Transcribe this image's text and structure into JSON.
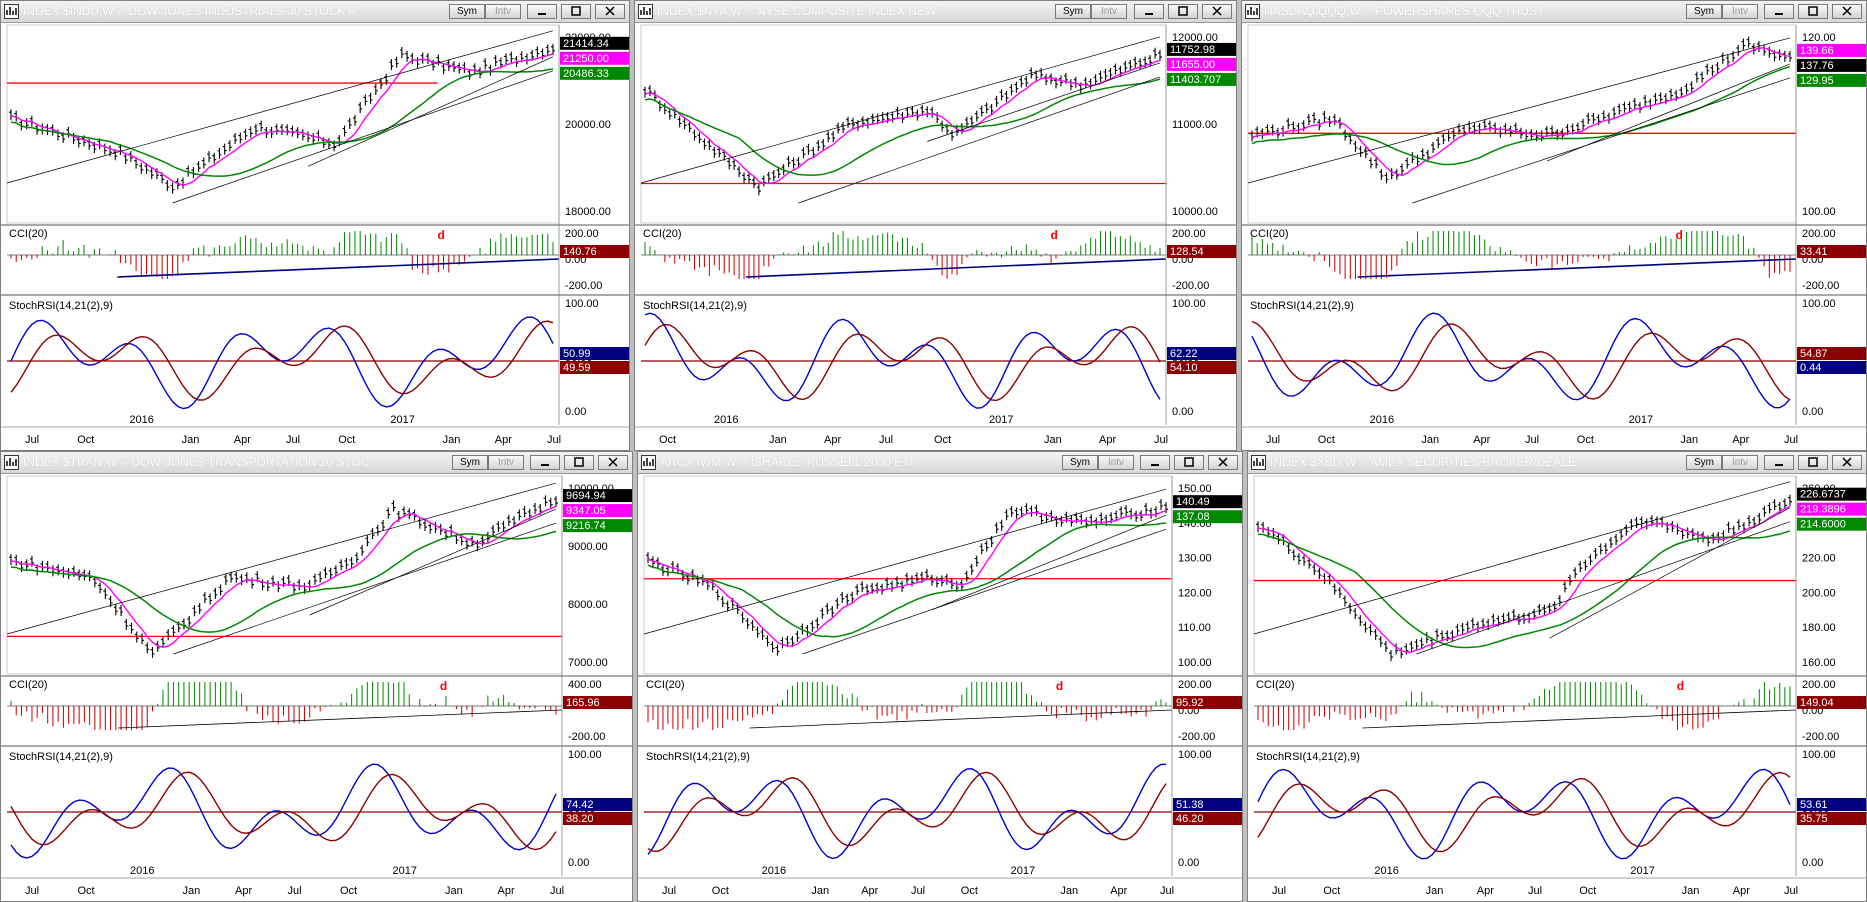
{
  "buttons": {
    "sym": "Sym",
    "intv": "Intv"
  },
  "colors": {
    "price": "#000000",
    "ma_fast": "#ff00ff",
    "ma_slow": "#008800",
    "hline": "#ff0000",
    "cci_pos": "#008800",
    "cci_neg": "#cc0000",
    "cci_trend": "#000080",
    "stoch_k": "#0000cc",
    "stoch_d": "#8b0000",
    "divergence": "#ff0000",
    "grid": "#888888"
  },
  "panels": [
    {
      "title": "INDEX:$INDU,W -- DOW-JONES INDUSTRIALS 30 STOCK A",
      "price_ticks": [
        "22000.00",
        "20000.00",
        "18000.00"
      ],
      "price_badges": [
        {
          "text": "21414.34",
          "color": "#000000"
        },
        {
          "text": "21250.00",
          "color": "#ff00ff"
        },
        {
          "text": "20486.33",
          "color": "#008800"
        }
      ],
      "cci_label": "CCI(20)",
      "cci_ticks": [
        "200.00",
        "0.00",
        "-200.00"
      ],
      "cci_badge": "140.76",
      "cci_mark": "d",
      "stoch_label": "StochRSI(14,21(2),9)",
      "stoch_ticks": [
        "100.00",
        "50.00",
        "0.00"
      ],
      "stoch_badges": [
        {
          "text": "50.99",
          "color": "#000080"
        },
        {
          "text": "49.59",
          "color": "#8b0000"
        }
      ],
      "x_labels": [
        "Jul",
        "Oct",
        "2016",
        "Jan",
        "Apr",
        "Jul",
        "Oct",
        "2017",
        "Jan",
        "Apr",
        "Jul"
      ]
    },
    {
      "title": "INDEX:$NYA,W -- NYSE COMPOSITE INDEX NEW",
      "price_ticks": [
        "12000.00",
        "11000.00",
        "10000.00"
      ],
      "price_badges": [
        {
          "text": "11752.98",
          "color": "#000000"
        },
        {
          "text": "11655.00",
          "color": "#ff00ff"
        },
        {
          "text": "11403.707",
          "color": "#008800"
        }
      ],
      "cci_label": "CCI(20)",
      "cci_ticks": [
        "200.00",
        "0.00",
        "-200.00"
      ],
      "cci_badge": "128.54",
      "cci_mark": "d",
      "stoch_label": "StochRSI(14,21(2),9)",
      "stoch_ticks": [
        "100.00",
        "50.00",
        "0.00"
      ],
      "stoch_badges": [
        {
          "text": "62.22",
          "color": "#000080"
        },
        {
          "text": "54.10",
          "color": "#8b0000"
        }
      ],
      "x_labels": [
        "Oct",
        "2016",
        "Jan",
        "Apr",
        "Jul",
        "Oct",
        "2017",
        "Jan",
        "Apr",
        "Jul"
      ]
    },
    {
      "title": "NASDAQ:QQQ,W -- POWERSHARES QQQ TRUST",
      "price_ticks": [
        "120.00",
        "100.00"
      ],
      "price_badges": [
        {
          "text": "139.66",
          "color": "#ff00ff"
        },
        {
          "text": "137.76",
          "color": "#000000"
        },
        {
          "text": "129.95",
          "color": "#008800"
        }
      ],
      "cci_label": "CCI(20)",
      "cci_ticks": [
        "200.00",
        "0.00",
        "-200.00"
      ],
      "cci_badge": "33.41",
      "cci_mark": "d",
      "stoch_label": "StochRSI(14,21(2),9)",
      "stoch_ticks": [
        "100.00",
        "0.00"
      ],
      "stoch_badges": [
        {
          "text": "54.87",
          "color": "#8b0000"
        },
        {
          "text": "0.44",
          "color": "#000080"
        }
      ],
      "x_labels": [
        "Jul",
        "Oct",
        "2016",
        "Jan",
        "Apr",
        "Jul",
        "Oct",
        "2017",
        "Jan",
        "Apr",
        "Jul"
      ]
    },
    {
      "title": "INDEX:$TRAN,W -- DOW-JONES TRANSPORTATION 20 STOC",
      "price_ticks": [
        "10000.00",
        "9000.00",
        "8000.00",
        "7000.00"
      ],
      "price_badges": [
        {
          "text": "9694.94",
          "color": "#000000"
        },
        {
          "text": "9347.05",
          "color": "#ff00ff"
        },
        {
          "text": "9216.74",
          "color": "#008800"
        }
      ],
      "cci_label": "CCI(20)",
      "cci_ticks": [
        "400.00",
        "-200.00"
      ],
      "cci_badge": "165.96",
      "cci_mark": "d",
      "stoch_label": "StochRSI(14,21(2),9)",
      "stoch_ticks": [
        "100.00",
        "50.00",
        "0.00"
      ],
      "stoch_badges": [
        {
          "text": "74.42",
          "color": "#000080"
        },
        {
          "text": "38.20",
          "color": "#8b0000"
        }
      ],
      "x_labels": [
        "Jul",
        "Oct",
        "2016",
        "Jan",
        "Apr",
        "Jul",
        "Oct",
        "2017",
        "Jan",
        "Apr",
        "Jul"
      ]
    },
    {
      "title": "ARCX:IWM,W -- ISHARES RUSSELL 2000 ETF",
      "price_ticks": [
        "150.00",
        "140.00",
        "130.00",
        "120.00",
        "110.00",
        "100.00"
      ],
      "price_badges": [
        {
          "text": "140.49",
          "color": "#000000"
        },
        {
          "text": "137.08",
          "color": "#008800"
        }
      ],
      "cci_label": "CCI(20)",
      "cci_ticks": [
        "200.00",
        "0.00",
        "-200.00"
      ],
      "cci_badge": "95.92",
      "cci_mark": "d",
      "stoch_label": "StochRSI(14,21(2),9)",
      "stoch_ticks": [
        "100.00",
        "0.00"
      ],
      "stoch_badges": [
        {
          "text": "51.38",
          "color": "#000080"
        },
        {
          "text": "46.20",
          "color": "#8b0000"
        }
      ],
      "x_labels": [
        "Jul",
        "Oct",
        "2016",
        "Jan",
        "Apr",
        "Jul",
        "Oct",
        "2017",
        "Jan",
        "Apr",
        "Jul"
      ]
    },
    {
      "title": "INDEX:$XBD,W -- AMEX SECURITIES BROKER/DEALE",
      "price_ticks": [
        "260.00",
        "240.00",
        "220.00",
        "200.00",
        "180.00",
        "160.00"
      ],
      "price_badges": [
        {
          "text": "226.6737",
          "color": "#000000"
        },
        {
          "text": "219.3896",
          "color": "#ff00ff"
        },
        {
          "text": "214.6000",
          "color": "#008800"
        }
      ],
      "cci_label": "CCI(20)",
      "cci_ticks": [
        "200.00",
        "0.00",
        "-200.00"
      ],
      "cci_badge": "149.04",
      "cci_mark": "d",
      "stoch_label": "StochRSI(14,21(2),9)",
      "stoch_ticks": [
        "100.00",
        "50.00",
        "0.00"
      ],
      "stoch_badges": [
        {
          "text": "53.61",
          "color": "#000080"
        },
        {
          "text": "35.75",
          "color": "#8b0000"
        }
      ],
      "x_labels": [
        "Jul",
        "Oct",
        "2016",
        "Jan",
        "Apr",
        "Jul",
        "Oct",
        "2017",
        "Jan",
        "Apr",
        "Jul"
      ]
    }
  ]
}
